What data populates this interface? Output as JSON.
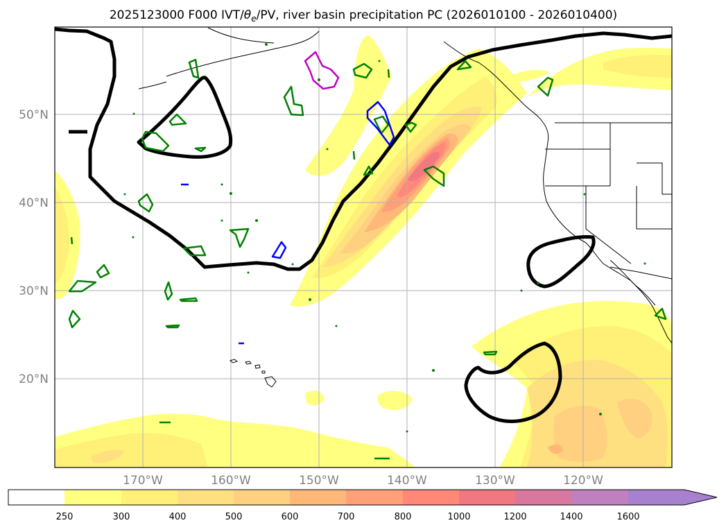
{
  "title": "2025123000 F000 IVT/θe/PV, river basin precipitation PC (2026010100 - 2026010400)",
  "title_parts": {
    "prefix": "2025123000 F000 IVT/",
    "theta": "θ",
    "sub_e": "e",
    "suffix": "/PV, river basin precipitation PC (2026010100 - 2026010400)"
  },
  "map": {
    "lon_range": [
      -180,
      -110
    ],
    "lat_range": [
      10,
      60
    ],
    "lat_ticks": [
      {
        "value": 50,
        "label": "50°N"
      },
      {
        "value": 40,
        "label": "40°N"
      },
      {
        "value": 30,
        "label": "30°N"
      },
      {
        "value": 20,
        "label": "20°N"
      }
    ],
    "lon_ticks": [
      {
        "value": -170,
        "label": "170°W"
      },
      {
        "value": -160,
        "label": "160°W"
      },
      {
        "value": -150,
        "label": "150°W"
      },
      {
        "value": -140,
        "label": "140°W"
      },
      {
        "value": -130,
        "label": "130°W"
      },
      {
        "value": -120,
        "label": "120°W"
      }
    ],
    "contour_colors": {
      "theta_e": "#000000",
      "pv_low": "#008000",
      "pv_mid": "#0000ff",
      "pv_high": "#c000c0",
      "coast": "#000000"
    }
  },
  "colorbar": {
    "levels": [
      "250",
      "300",
      "400",
      "500",
      "600",
      "700",
      "800",
      "1000",
      "1200",
      "1400",
      "1600"
    ],
    "colors": [
      "#ffffff",
      "#ffff80",
      "#fff078",
      "#ffe080",
      "#ffd080",
      "#ffb878",
      "#ffa078",
      "#ff8878",
      "#f07880",
      "#d878a0",
      "#c080c0",
      "#a880d0"
    ]
  }
}
